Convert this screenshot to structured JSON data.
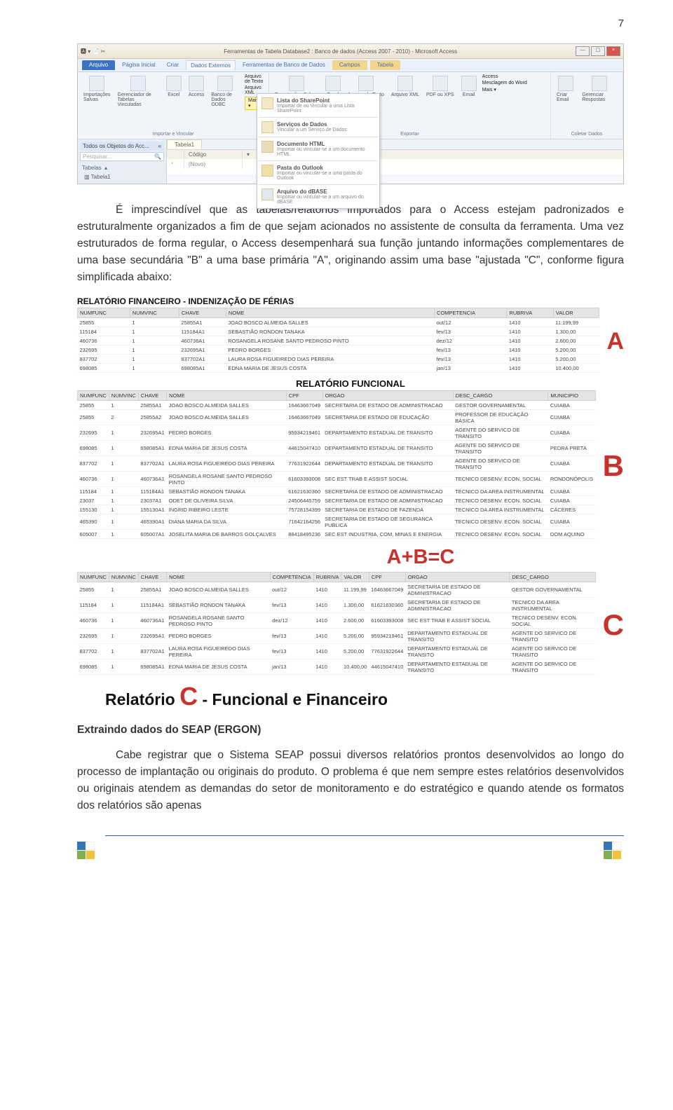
{
  "page_number": "7",
  "access": {
    "title_center": "Ferramentas de Tabela     Database2 : Banco de dados (Access 2007 - 2010) - Microsoft Access",
    "file_tab": "Arquivo",
    "tabs": [
      "Página Inicial",
      "Criar",
      "Dados Externos",
      "Ferramentas de Banco de Dados",
      "Campos",
      "Tabela"
    ],
    "groups": {
      "g1_label": "Importar e Vincular",
      "g2_label": "Salvas",
      "g3_label": "Exportar",
      "g4_label": "Coletar Dados",
      "items1": [
        "Importações\nSalvas",
        "Gerenciador de\nTabelas Vinculadas",
        "Excel",
        "Access",
        "Banco de\nDados ODBC"
      ],
      "mais": "Mais ▾",
      "maisini": [
        "Arquivo de Texto",
        "Arquivo XML"
      ],
      "items2": [
        "Exportações\nSalvas",
        "Excel",
        "Arquivo\nde Texto",
        "Arquivo\nXML",
        "PDF\nou XPS",
        "Email"
      ],
      "right_small": [
        "Access",
        "Mesclagem do Word",
        "Mais ▾"
      ],
      "items3": [
        "Criar\nEmail",
        "Gerenciar\nRespostas"
      ]
    },
    "dropdown": [
      {
        "t": "Lista do SharePoint",
        "s": "Importar de ou Vincular a uma Lista SharePoint"
      },
      {
        "t": "Serviços de Dados",
        "s": "Vincular a um Serviço de Dados"
      },
      {
        "t": "Documento HTML",
        "s": "Importar ou vincular-se a um documento HTML"
      },
      {
        "t": "Pasta do Outlook",
        "s": "Importar ou vincular-se a uma pasta do Outlook"
      },
      {
        "t": "Arquivo do dBASE",
        "s": "Importar ou vincular-se a um arquivo do dBASE"
      }
    ],
    "nav": {
      "head": "Todos os Objetos do Acc...",
      "search": "Pesquisar...",
      "cat": "Tabelas",
      "item": "Tabela1"
    },
    "sheet": {
      "tab": "Tabela1",
      "h1": "Código",
      "h2": "",
      "row": "(Novo)"
    }
  },
  "para1": "É imprescindível que as tabelas/relatórios importados para o Access estejam padronizados e estruturalmente organizados a fim de que sejam acionados no assistente de consulta da ferramenta. Uma vez estruturados de forma regular, o Access desempenhará sua função juntando informações complementares de uma base secundária \"B\" a uma base primária \"A\", originando assim uma base \"ajustada \"C\", conforme figura simplificada abaixo:",
  "reportA": {
    "title": "RELATÓRIO FINANCEIRO - INDENIZAÇÃO DE FÉRIAS",
    "cols": [
      "NUMFUNC",
      "NUMVINC",
      "CHAVE",
      "NOME",
      "COMPETENCIA",
      "RUBRIVA",
      "VALOR"
    ],
    "rows": [
      [
        "25855",
        "1",
        "25855A1",
        "JOAO BOSCO ALMEIDA SALLES",
        "out/12",
        "1410",
        "11.199,99"
      ],
      [
        "115184",
        "1",
        "115184A1",
        "SEBASTIÃO RONDON TANAKA",
        "fev/13",
        "1410",
        "1.300,00"
      ],
      [
        "460736",
        "1",
        "460736A1",
        "ROSANGELA ROSANE SANTO PEDROSO PINTO",
        "dez/12",
        "1410",
        "2.600,00"
      ],
      [
        "232695",
        "1",
        "232695A1",
        "PEDRO BORGES",
        "fev/13",
        "1410",
        "5.200,00"
      ],
      [
        "837702",
        "1",
        "837702A1",
        "LAURA ROSA FIGUEIREDO DIAS PEREIRA",
        "fev/13",
        "1410",
        "5.200,00"
      ],
      [
        "698085",
        "1",
        "698085A1",
        "EDNA MARIA DE JESUS COSTA",
        "jan/13",
        "1410",
        "10.400,00"
      ]
    ],
    "letter": "A"
  },
  "reportB": {
    "title": "RELATÓRIO FUNCIONAL",
    "cols": [
      "NUMFUNC",
      "NUMVINC",
      "CHAVE",
      "NOME",
      "CPF",
      "ORGAO",
      "DESC_CARGO",
      "MUNICIPIO"
    ],
    "rows": [
      [
        "25855",
        "1",
        "25855A1",
        "JOAO BOSCO ALMEIDA SALLES",
        "16463667049",
        "SECRETARIA DE ESTADO DE ADMINISTRACAO",
        "GESTOR GOVERNAMENTAL",
        "CUIABA"
      ],
      [
        "25855",
        "2",
        "25855A2",
        "JOAO BOSCO ALMEIDA SALLES",
        "16463667049",
        "SECRETARIA DE ESTADO DE EDUCAÇÃO",
        "PROFESSOR DE EDUCAÇÃO BÁSICA",
        "CUIABA"
      ],
      [
        "232695",
        "1",
        "232695A1",
        "PEDRO BORGES",
        "95934219461",
        "DEPARTAMENTO ESTADUAL DE TRANSITO",
        "AGENTE DO SERVICO DE TRANSITO",
        "CUIABA"
      ],
      [
        "698085",
        "1",
        "698085A1",
        "EDNA MARIA DE JESUS COSTA",
        "44615047410",
        "DEPARTAMENTO ESTADUAL DE TRANSITO",
        "AGENTE DO SERVICO DE TRANSITO",
        "PEDRA PRETA"
      ],
      [
        "837702",
        "1",
        "837702A1",
        "LAURA ROSA FIGUEIREDO DIAS PEREIRA",
        "77631922644",
        "DEPARTAMENTO ESTADUAL DE TRANSITO",
        "AGENTE DO SERVICO DE TRANSITO",
        "CUIABA"
      ],
      [
        "460736",
        "1",
        "460736A1",
        "ROSANGELA ROSANE SANTO PEDROSO PINTO",
        "61603393008",
        "SEC EST TRAB E ASSIST SOCIAL",
        "TECNICO DESENV. ECON. SOCIAL",
        "RONDONÓPOLIS"
      ],
      [
        "115184",
        "1",
        "115184A1",
        "SEBASTIÃO RONDON TANAKA",
        "61621630360",
        "SECRETARIA DE ESTADO DE ADMINISTRACAO",
        "TECNICO DA AREA INSTRUMENTAL",
        "CUIABA"
      ],
      [
        "23037",
        "1",
        "23037A1",
        "ODET DE OLIVEIRA SILVA",
        "24506445759",
        "SECRETARIA DE ESTADO DE ADMINISTRACAO",
        "TECNICO DESENV. ECON. SOCIAL",
        "CUIABA"
      ],
      [
        "155130",
        "1",
        "155130A1",
        "INGRID RIBEIRO LESTE",
        "75728154399",
        "SECRETARIA DE ESTADO DE FAZENDA",
        "TECNICO DA AREA INSTRUMENTAL",
        "CÁCERES"
      ],
      [
        "465390",
        "1",
        "465390A1",
        "DIANA MARIA DA SILVA",
        "71642164256",
        "SECRETARIA DE ESTADO DE SEGURANCA PUBLICA",
        "TECNICO DESENV. ECON. SOCIAL",
        "CUIABA"
      ],
      [
        "605007",
        "1",
        "605007A1",
        "JOSELITA MARIA DE BARROS GOLÇALVES",
        "88418495236",
        "SEC EST INDUSTRIA, COM, MINAS E ENERGIA",
        "TECNICO DESENV. ECON. SOCIAL",
        "DOM AQUINO"
      ]
    ],
    "letter": "B"
  },
  "formula": "A+B=C",
  "reportC": {
    "cols": [
      "NUMFUNC",
      "NUMVINC",
      "CHAVE",
      "NOME",
      "COMPETENCIA",
      "RUBRIVA",
      "VALOR",
      "CPF",
      "ORGAO",
      "DESC_CARGO"
    ],
    "rows": [
      [
        "25855",
        "1",
        "25855A1",
        "JOAO BOSCO ALMEIDA SALLES",
        "out/12",
        "1410",
        "11.199,99",
        "16463667049",
        "SECRETARIA DE ESTADO DE ADMINISTRACAO",
        "GESTOR GOVERNAMENTAL"
      ],
      [
        "115184",
        "1",
        "115184A1",
        "SEBASTIÃO RONDON TANAKA",
        "fev/13",
        "1410",
        "1.300,00",
        "61621630360",
        "SECRETARIA DE ESTADO DE ADMINISTRACAO",
        "TECNICO DA AREA INSTRUMENTAL"
      ],
      [
        "460736",
        "1",
        "460736A1",
        "ROSANGELA ROSANE SANTO PEDROSO PINTO",
        "dez/12",
        "1410",
        "2.600,00",
        "61603393008",
        "SEC EST TRAB E ASSIST SOCIAL",
        "TECNICO DESENV. ECON. SOCIAL"
      ],
      [
        "232695",
        "1",
        "232695A1",
        "PEDRO BORGES",
        "fev/13",
        "1410",
        "5.200,00",
        "95934219461",
        "DEPARTAMENTO ESTADUAL DE TRANSITO",
        "AGENTE DO SERVICO DE TRANSITO"
      ],
      [
        "837702",
        "1",
        "837702A1",
        "LAURA ROSA FIGUEIREDO DIAS PEREIRA",
        "fev/13",
        "1410",
        "5.200,00",
        "77631922644",
        "DEPARTAMENTO ESTADUAL DE TRANSITO",
        "AGENTE DO SERVICO DE TRANSITO"
      ],
      [
        "698085",
        "1",
        "698085A1",
        "EDNA MARIA DE JESUS COSTA",
        "jan/13",
        "1410",
        "10.400,00",
        "44615047410",
        "DEPARTAMENTO ESTADUAL DE TRANSITO",
        "AGENTE DO SERVICO DE TRANSITO"
      ]
    ],
    "letter": "C"
  },
  "relc_line": {
    "pre": "Relatório ",
    "c": "C",
    "post": " - Funcional e Financeiro"
  },
  "subhead": "Extraindo dados do SEAP (ERGON)",
  "para2": "Cabe registrar que o Sistema SEAP possui diversos relatórios prontos desenvolvidos ao longo do processo de implantação ou originais do produto. O problema é que nem sempre estes relatórios desenvolvidos ou originais atendem as demandas do setor de monitoramento e do estratégico e quando atende os formatos dos relatórios são apenas"
}
